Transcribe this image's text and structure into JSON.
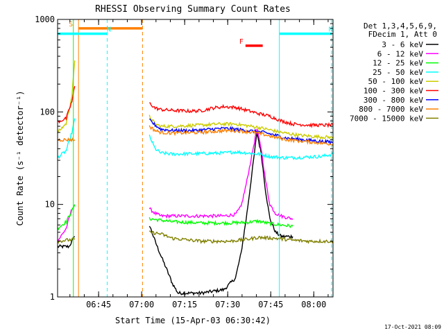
{
  "chart_data": {
    "type": "line",
    "title": "RHESSI Observing Summary Count Rates",
    "xlabel": "Start Time (15-Apr-03 06:30:42)",
    "ylabel": "Count Rate (s⁻¹ detector⁻¹)",
    "yscale": "log",
    "ylim": [
      1,
      1000
    ],
    "xlim_minutes": [
      0,
      96
    ],
    "x_ticks": [
      {
        "t": 14.3,
        "label": "06:45"
      },
      {
        "t": 29.3,
        "label": "07:00"
      },
      {
        "t": 44.3,
        "label": "07:15"
      },
      {
        "t": 59.3,
        "label": "07:30"
      },
      {
        "t": 74.3,
        "label": "07:45"
      },
      {
        "t": 89.3,
        "label": "08:00"
      }
    ],
    "y_ticks": [
      {
        "v": 1,
        "label": "1"
      },
      {
        "v": 10,
        "label": "10"
      },
      {
        "v": 100,
        "label": "100"
      },
      {
        "v": 1000,
        "label": "1000"
      }
    ],
    "legend_header": [
      "Det 1,3,4,5,6,9,",
      "FDecim 1, Att 0"
    ],
    "legend_position": "right",
    "footer_date": "17-Oct-2021 08:09",
    "series": [
      {
        "name": "3 - 6 keV",
        "color": "#000000",
        "segments": [
          [
            [
              0,
              3.5
            ],
            [
              4,
              3.5
            ],
            [
              5,
              4
            ],
            [
              6,
              4.5
            ]
          ],
          [
            [
              32,
              6
            ],
            [
              34,
              4
            ],
            [
              36,
              2.8
            ],
            [
              38,
              2
            ],
            [
              40,
              1.4
            ],
            [
              42,
              1.1
            ],
            [
              50,
              1.1
            ],
            [
              58,
              1.2
            ],
            [
              62,
              1.6
            ],
            [
              64,
              3
            ],
            [
              66,
              8
            ],
            [
              68,
              25
            ],
            [
              69.5,
              60
            ],
            [
              71,
              35
            ],
            [
              72.5,
              14
            ],
            [
              74,
              7
            ],
            [
              76,
              5
            ],
            [
              78,
              4.5
            ],
            [
              80,
              4.5
            ],
            [
              82,
              4.5
            ]
          ]
        ]
      },
      {
        "name": "6 - 12 keV",
        "color": "#ff00ff",
        "segments": [
          [
            [
              0,
              4
            ],
            [
              3,
              5.5
            ],
            [
              5,
              9
            ],
            [
              6,
              10
            ]
          ],
          [
            [
              32,
              9
            ],
            [
              34,
              8
            ],
            [
              36,
              7.5
            ],
            [
              40,
              7.5
            ],
            [
              50,
              7.5
            ],
            [
              58,
              7.5
            ],
            [
              62,
              7.8
            ],
            [
              64,
              9.5
            ],
            [
              66,
              18
            ],
            [
              68,
              38
            ],
            [
              69.5,
              65
            ],
            [
              71,
              40
            ],
            [
              72.5,
              18
            ],
            [
              74,
              10
            ],
            [
              76,
              8
            ],
            [
              78,
              7.5
            ],
            [
              80,
              7.2
            ],
            [
              82,
              7
            ]
          ]
        ]
      },
      {
        "name": "12 - 25 keV",
        "color": "#00ff00",
        "segments": [
          [
            [
              0,
              5.5
            ],
            [
              3,
              6.5
            ],
            [
              5,
              8.5
            ],
            [
              6,
              10
            ]
          ],
          [
            [
              32,
              7
            ],
            [
              40,
              6.5
            ],
            [
              50,
              6.3
            ],
            [
              60,
              6.3
            ],
            [
              66,
              6.4
            ],
            [
              70,
              6.6
            ],
            [
              74,
              6.2
            ],
            [
              78,
              6
            ],
            [
              82,
              5.8
            ]
          ]
        ]
      },
      {
        "name": "25 - 50 keV",
        "color": "#00ffff",
        "segments": [
          [
            [
              0,
              32
            ],
            [
              3,
              38
            ],
            [
              5,
              60
            ],
            [
              6,
              85
            ]
          ],
          [
            [
              32,
              55
            ],
            [
              34,
              40
            ],
            [
              36,
              36
            ],
            [
              40,
              35
            ],
            [
              50,
              35.5
            ],
            [
              58,
              36
            ],
            [
              62,
              37
            ],
            [
              66,
              36
            ],
            [
              70,
              35
            ],
            [
              74,
              33
            ],
            [
              78,
              32
            ],
            [
              82,
              32
            ],
            [
              92,
              33
            ],
            [
              96,
              35
            ]
          ]
        ]
      },
      {
        "name": "50 - 100 keV",
        "color": "#cccc00",
        "segments": [
          [
            [
              0,
              60
            ],
            [
              3,
              75
            ],
            [
              5,
              150
            ],
            [
              6,
              360
            ]
          ],
          [
            [
              32,
              90
            ],
            [
              34,
              74
            ],
            [
              36,
              70
            ],
            [
              40,
              70
            ],
            [
              50,
              72
            ],
            [
              56,
              74
            ],
            [
              62,
              74
            ],
            [
              66,
              71
            ],
            [
              70,
              68
            ],
            [
              74,
              64
            ],
            [
              78,
              60
            ],
            [
              84,
              56
            ],
            [
              90,
              54
            ],
            [
              96,
              53
            ]
          ]
        ]
      },
      {
        "name": "100 - 300 keV",
        "color": "#ff0000",
        "segments": [
          [
            [
              0,
              78
            ],
            [
              3,
              85
            ],
            [
              5,
              130
            ],
            [
              6,
              190
            ]
          ],
          [
            [
              32,
              125
            ],
            [
              34,
              110
            ],
            [
              36,
              106
            ],
            [
              40,
              104
            ],
            [
              46,
              102
            ],
            [
              50,
              103
            ],
            [
              54,
              110
            ],
            [
              58,
              114
            ],
            [
              62,
              112
            ],
            [
              66,
              104
            ],
            [
              70,
              96
            ],
            [
              74,
              90
            ],
            [
              78,
              80
            ],
            [
              82,
              74
            ],
            [
              88,
              72
            ],
            [
              96,
              72
            ]
          ]
        ]
      },
      {
        "name": "300 - 800 keV",
        "color": "#0000ff",
        "segments": [
          [
            [
              32,
              82
            ],
            [
              34,
              72
            ],
            [
              36,
              65
            ],
            [
              40,
              63
            ],
            [
              48,
              63
            ],
            [
              56,
              66
            ],
            [
              60,
              66
            ],
            [
              64,
              64
            ],
            [
              68,
              62
            ],
            [
              72,
              60
            ],
            [
              76,
              56
            ],
            [
              80,
              52
            ],
            [
              86,
              50
            ],
            [
              92,
              48
            ],
            [
              96,
              47
            ]
          ]
        ]
      },
      {
        "name": "800 - 7000 keV",
        "color": "#ff8000",
        "segments": [
          [
            [
              0,
              50
            ],
            [
              6,
              50
            ]
          ],
          [
            [
              32,
              70
            ],
            [
              34,
              63
            ],
            [
              36,
              60
            ],
            [
              40,
              59
            ],
            [
              50,
              60
            ],
            [
              56,
              62
            ],
            [
              60,
              63
            ],
            [
              64,
              62
            ],
            [
              68,
              60
            ],
            [
              72,
              57
            ],
            [
              76,
              53
            ],
            [
              80,
              50
            ],
            [
              86,
              48
            ],
            [
              92,
              46
            ],
            [
              96,
              45
            ]
          ]
        ]
      },
      {
        "name": "7000 - 15000 keV",
        "color": "#808000",
        "segments": [
          [
            [
              0,
              4
            ],
            [
              6,
              4.2
            ]
          ],
          [
            [
              32,
              5
            ],
            [
              36,
              4.8
            ],
            [
              40,
              4.3
            ],
            [
              50,
              4
            ],
            [
              60,
              4
            ],
            [
              66,
              4.2
            ],
            [
              70,
              4.4
            ],
            [
              76,
              4.3
            ],
            [
              82,
              4.1
            ],
            [
              88,
              4
            ],
            [
              96,
              4
            ]
          ]
        ]
      }
    ],
    "annotations": [
      {
        "label": "S",
        "color": "#ff8000",
        "kind": "span",
        "t0": 7.3,
        "t1": 29.6,
        "value": 800
      },
      {
        "label": "N",
        "color": "#00ffff",
        "kind": "span",
        "t0": 0,
        "t1": 17.3,
        "value": 700
      },
      {
        "label": "N",
        "color": "#00ffff",
        "kind": "span",
        "t0": 77.3,
        "t1": 95.5,
        "value": 700
      },
      {
        "label": "F",
        "color": "#ff0000",
        "kind": "marker",
        "t0": 65.5,
        "t1": 71.5,
        "value": 520
      }
    ],
    "vlines": [
      {
        "t": 5.5,
        "color": "#00ff00",
        "style": "solid"
      },
      {
        "t": 7.3,
        "color": "#ff8000",
        "style": "solid"
      },
      {
        "t": 17.3,
        "color": "#00ffff",
        "style": "dashed"
      },
      {
        "t": 29.6,
        "color": "#ff8000",
        "style": "dashed"
      },
      {
        "t": 77.3,
        "color": "#00ffff",
        "style": "solid"
      },
      {
        "t": 95.5,
        "color": "#00ffff",
        "style": "dashed"
      }
    ]
  }
}
